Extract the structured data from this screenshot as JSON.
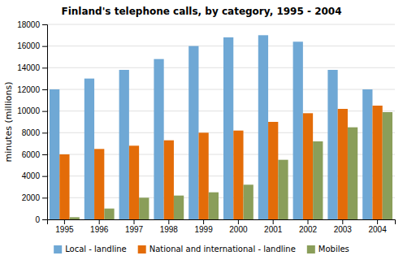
{
  "chart_data": {
    "type": "bar",
    "title": "Finland's telephone calls, by category, 1995 - 2004",
    "categories": [
      "1995",
      "1996",
      "1997",
      "1998",
      "1999",
      "2000",
      "2001",
      "2002",
      "2003",
      "2004"
    ],
    "series": [
      {
        "name": "Local - landline",
        "color": "#6FA8D5",
        "values": [
          12000,
          13000,
          13800,
          14800,
          16000,
          16800,
          17000,
          16400,
          13800,
          12000
        ]
      },
      {
        "name": "National and international - landline",
        "color": "#E36C09",
        "values": [
          6000,
          6500,
          6800,
          7300,
          8000,
          8200,
          9000,
          9800,
          10200,
          10500
        ]
      },
      {
        "name": "Mobiles",
        "color": "#8A9E5A",
        "values": [
          200,
          1000,
          2000,
          2200,
          2500,
          3200,
          5500,
          7200,
          8500,
          9900
        ]
      }
    ],
    "ylabel": "minutes (millions)",
    "ylim": [
      0,
      18000
    ],
    "yticks": [
      0,
      2000,
      4000,
      6000,
      8000,
      10000,
      12000,
      14000,
      16000,
      18000
    ],
    "grid": true,
    "legend": "bottom"
  }
}
